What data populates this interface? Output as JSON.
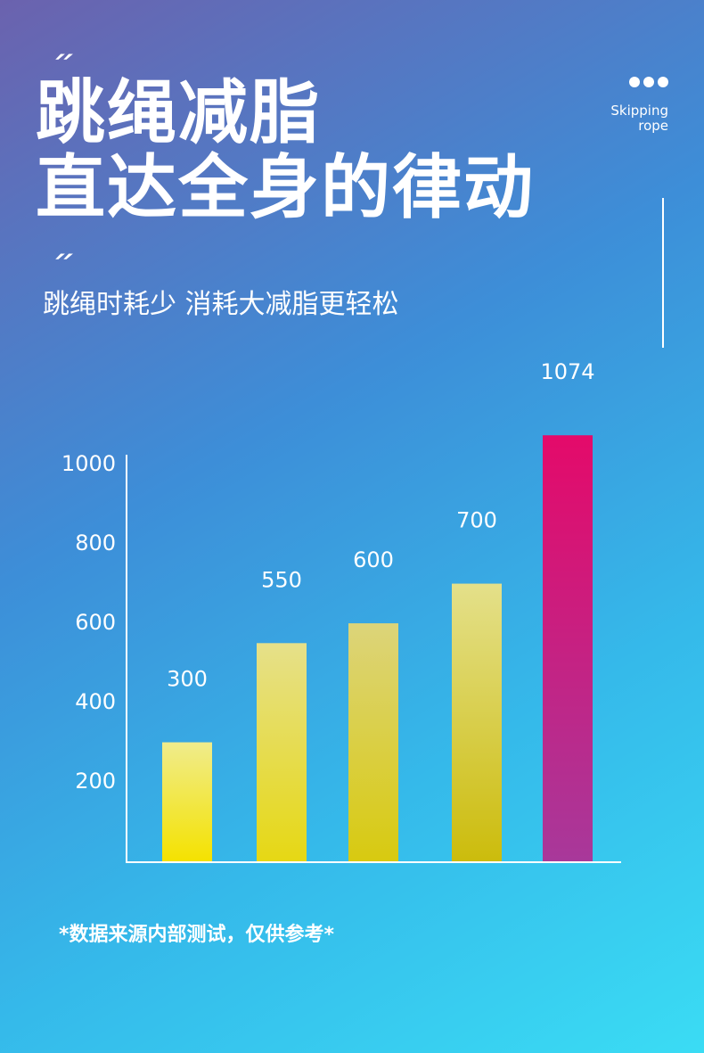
{
  "header": {
    "title_lines": [
      "跳绳减脂",
      "直达全身的律动"
    ],
    "subtitle": "跳绳时耗少 消耗大减脂更轻松",
    "badge_lines": [
      "Skipping",
      "rope"
    ]
  },
  "chart_data": {
    "type": "bar",
    "values": [
      300,
      550,
      600,
      700,
      1074
    ],
    "colors": [
      [
        "#f0ec8c",
        "#f4e200"
      ],
      [
        "#e6e08a",
        "#e6d814"
      ],
      [
        "#dcd47a",
        "#d8ca10"
      ],
      [
        "#e4e08a",
        "#ccbc0c"
      ],
      [
        "#e40a6a",
        "#a8389a"
      ]
    ],
    "ylim": [
      0,
      1025
    ],
    "yticks": [
      200,
      400,
      600,
      800,
      1000
    ]
  },
  "footnote": "*数据来源内部测试，仅供参考*"
}
